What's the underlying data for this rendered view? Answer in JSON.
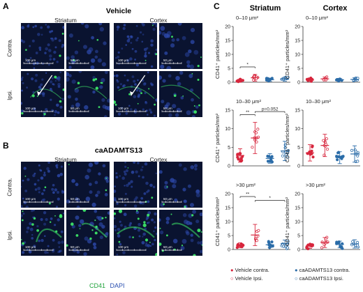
{
  "panelA": {
    "letter": "A",
    "title": "Vehicle",
    "col_left": "Striatum",
    "col_right": "Cortex",
    "row_top": "Contra.",
    "row_bottom": "Ipsi.",
    "scale_labels": [
      "100 μm",
      "50 μm",
      "100 μm",
      "50 μm",
      "100 μm",
      "50 μm",
      "100 μm",
      "50 μm"
    ]
  },
  "panelB": {
    "letter": "B",
    "title": "caADAMTS13",
    "col_left": "Striatum",
    "col_right": "Cortex",
    "row_top": "Contra.",
    "row_bottom": "Ipsi.",
    "scale_labels": [
      "100 μm",
      "50 μm",
      "100 μm",
      "50 μm",
      "100 μm",
      "50 μm",
      "100 μm",
      "50 μm"
    ]
  },
  "micro_legend": {
    "cd41": "CD41",
    "dapi": "DAPI"
  },
  "panelC": {
    "letter": "C",
    "col_left": "Striatum",
    "col_right": "Cortex",
    "ylabel": "CD41⁺ particles/mm²",
    "row_titles": [
      "0–10 μm²",
      "10–30 μm²",
      ">30 μm²"
    ],
    "yticks": [
      "0",
      "5",
      "10",
      "15",
      "20"
    ],
    "annotations": {
      "r0_striatum": [
        "*"
      ],
      "r1_striatum": [
        "**",
        "p=0.052"
      ],
      "r2_striatum": [
        "**",
        "*"
      ]
    }
  },
  "legend": {
    "vehicle_contra": "Vehicle contra.",
    "vehicle_ipsi": "Vehicle Ipsi.",
    "ca_contra": "caADAMTS13 contra.",
    "ca_ipsi": "caADAMTS13 Ipsi."
  },
  "colors": {
    "vehicle": "#d7263d",
    "ca": "#2b6ca8",
    "green": "#39e35b",
    "blue": "#1b2e7a"
  },
  "chart_data": [
    {
      "type": "scatter",
      "region": "Striatum",
      "size": "0–10 μm²",
      "ylim": [
        0,
        20
      ],
      "groups": [
        {
          "group": "Vehicle contra.",
          "mean": 0.6,
          "sd": 0.4
        },
        {
          "group": "Vehicle Ipsi.",
          "mean": 1.6,
          "sd": 1.2
        },
        {
          "group": "caADAMTS13 contra.",
          "mean": 0.9,
          "sd": 0.6
        },
        {
          "group": "caADAMTS13 Ipsi.",
          "mean": 1.1,
          "sd": 0.7
        }
      ]
    },
    {
      "type": "scatter",
      "region": "Cortex",
      "size": "0–10 μm²",
      "ylim": [
        0,
        20
      ],
      "groups": [
        {
          "group": "Vehicle contra.",
          "mean": 0.8,
          "sd": 0.5
        },
        {
          "group": "Vehicle Ipsi.",
          "mean": 1.2,
          "sd": 0.7
        },
        {
          "group": "caADAMTS13 contra.",
          "mean": 0.9,
          "sd": 0.5
        },
        {
          "group": "caADAMTS13 Ipsi.",
          "mean": 1.0,
          "sd": 0.6
        }
      ]
    },
    {
      "type": "scatter",
      "region": "Striatum",
      "size": "10–30 μm²",
      "ylim": [
        0,
        15
      ],
      "groups": [
        {
          "group": "Vehicle contra.",
          "mean": 2.8,
          "sd": 1.8
        },
        {
          "group": "Vehicle Ipsi.",
          "mean": 7.5,
          "sd": 4.2
        },
        {
          "group": "caADAMTS13 contra.",
          "mean": 2.0,
          "sd": 1.3
        },
        {
          "group": "caADAMTS13 Ipsi.",
          "mean": 4.0,
          "sd": 2.6
        }
      ]
    },
    {
      "type": "scatter",
      "region": "Cortex",
      "size": "10–30 μm²",
      "ylim": [
        0,
        15
      ],
      "groups": [
        {
          "group": "Vehicle contra.",
          "mean": 3.5,
          "sd": 2.2
        },
        {
          "group": "Vehicle Ipsi.",
          "mean": 5.5,
          "sd": 3.0
        },
        {
          "group": "caADAMTS13 contra.",
          "mean": 2.2,
          "sd": 1.6
        },
        {
          "group": "caADAMTS13 Ipsi.",
          "mean": 3.2,
          "sd": 2.2
        }
      ]
    },
    {
      "type": "scatter",
      "region": "Striatum",
      "size": ">30 μm²",
      "ylim": [
        0,
        20
      ],
      "groups": [
        {
          "group": "Vehicle contra.",
          "mean": 1.5,
          "sd": 0.9
        },
        {
          "group": "Vehicle Ipsi.",
          "mean": 5.2,
          "sd": 3.8
        },
        {
          "group": "caADAMTS13 contra.",
          "mean": 1.7,
          "sd": 1.0
        },
        {
          "group": "caADAMTS13 Ipsi.",
          "mean": 2.1,
          "sd": 1.3
        }
      ]
    },
    {
      "type": "scatter",
      "region": "Cortex",
      "size": ">30 μm²",
      "ylim": [
        0,
        20
      ],
      "groups": [
        {
          "group": "Vehicle contra.",
          "mean": 1.2,
          "sd": 0.8
        },
        {
          "group": "Vehicle Ipsi.",
          "mean": 2.5,
          "sd": 1.8
        },
        {
          "group": "caADAMTS13 contra.",
          "mean": 1.8,
          "sd": 1.2
        },
        {
          "group": "caADAMTS13 Ipsi.",
          "mean": 2.0,
          "sd": 1.5
        }
      ]
    }
  ]
}
